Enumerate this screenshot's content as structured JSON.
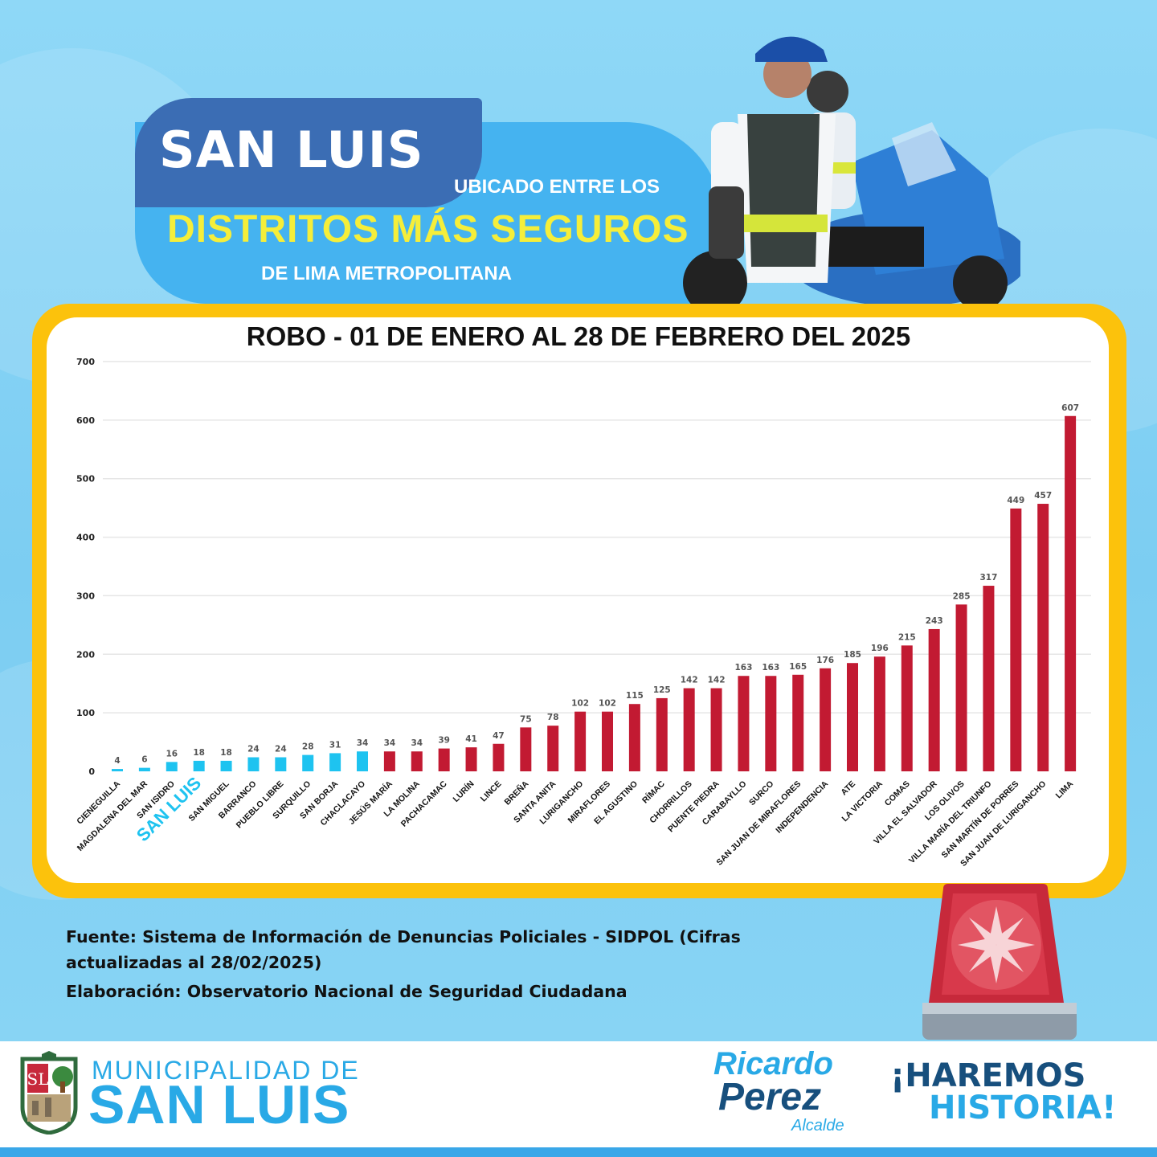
{
  "header": {
    "title": "SAN LUIS",
    "line1": "UBICADO ENTRE LOS",
    "line2": "DISTRITOS MÁS SEGUROS",
    "line3": "DE LIMA METROPOLITANA",
    "highlight_label": "SAN LUIS"
  },
  "colors": {
    "safe": "#1ec3f0",
    "unsafe": "#c21a32",
    "frame": "#fcc20c",
    "brand": "#29a9e6"
  },
  "chart_data": {
    "type": "bar",
    "title": "ROBO - 01 DE ENERO AL 28 DE FEBRERO DEL 2025",
    "ylim": [
      0,
      700
    ],
    "yticks": [
      0,
      100,
      200,
      300,
      400,
      500,
      600,
      700
    ],
    "categories": [
      "CIENEGUILLA",
      "MAGDALENA DEL MAR",
      "SAN ISIDRO",
      "SAN LUIS",
      "SAN MIGUEL",
      "BARRANCO",
      "PUEBLO LIBRE",
      "SURQUILLO",
      "SAN BORJA",
      "CHACLACAYO",
      "JESÚS MARÍA",
      "LA MOLINA",
      "PACHACAMAC",
      "LURÍN",
      "LINCE",
      "BREÑA",
      "SANTA ANITA",
      "LURIGANCHO",
      "MIRAFLORES",
      "EL AGUSTINO",
      "RÍMAC",
      "CHORRILLOS",
      "PUENTE PIEDRA",
      "CARABAYLLO",
      "SURCO",
      "SAN JUAN DE MIRAFLORES",
      "INDEPENDENCIA",
      "ATE",
      "LA VICTORIA",
      "COMAS",
      "VILLA EL SALVADOR",
      "LOS OLIVOS",
      "VILLA MARÍA DEL TRIUNFO",
      "SAN MARTÍN DE PORRES",
      "SAN JUAN DE LURIGANCHO",
      "LIMA"
    ],
    "values": [
      4,
      6,
      16,
      18,
      18,
      24,
      24,
      28,
      31,
      34,
      34,
      34,
      39,
      41,
      47,
      75,
      78,
      102,
      102,
      115,
      125,
      142,
      142,
      163,
      163,
      165,
      176,
      185,
      196,
      215,
      243,
      285,
      317,
      449,
      457,
      607
    ],
    "bar_colors": [
      "safe",
      "safe",
      "safe",
      "safe",
      "safe",
      "safe",
      "safe",
      "safe",
      "safe",
      "safe",
      "unsafe",
      "unsafe",
      "unsafe",
      "unsafe",
      "unsafe",
      "unsafe",
      "unsafe",
      "unsafe",
      "unsafe",
      "unsafe",
      "unsafe",
      "unsafe",
      "unsafe",
      "unsafe",
      "unsafe",
      "unsafe",
      "unsafe",
      "unsafe",
      "unsafe",
      "unsafe",
      "unsafe",
      "unsafe",
      "unsafe",
      "unsafe",
      "unsafe",
      "unsafe"
    ],
    "grid": true
  },
  "source": {
    "fuente": "Fuente: Sistema de Información de Denuncias Policiales - SIDPOL (Cifras actualizadas al 28/02/2025)",
    "elaboracion": "Elaboración: Observatorio Nacional de Seguridad Ciudadana"
  },
  "footer": {
    "muni_line1": "MUNICIPALIDAD DE",
    "muni_line2": "SAN LUIS",
    "mayor_first": "Ricardo",
    "mayor_last": "Perez",
    "mayor_role": "Alcalde",
    "slogan1": "¡HAREMOS",
    "slogan2": "HISTORIA!"
  }
}
